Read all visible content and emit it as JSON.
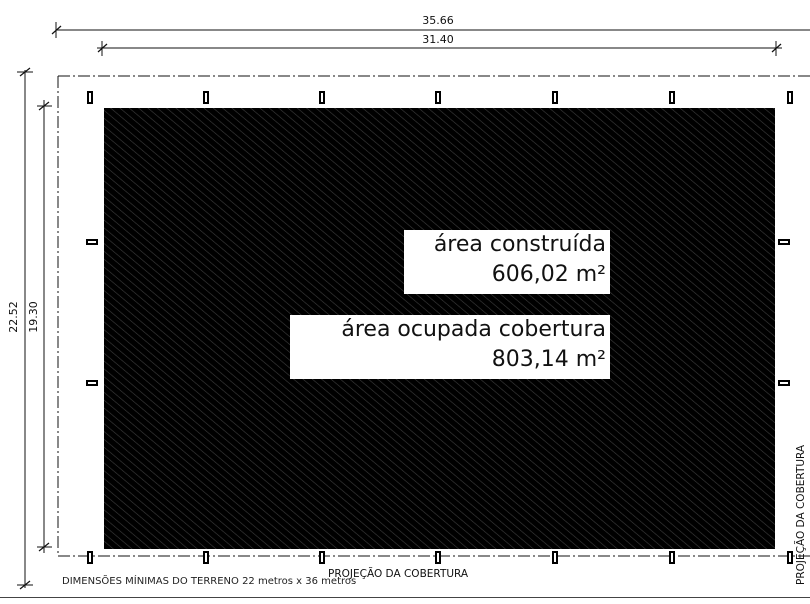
{
  "dimensions": {
    "outer_width": "35.66",
    "inner_width": "31.40",
    "outer_height": "22.52",
    "inner_height": "19.30"
  },
  "labels": {
    "built_area_title": "área construída",
    "built_area_value": "606,02 m²",
    "covered_area_title": "área ocupada cobertura",
    "covered_area_value": "803,14 m²",
    "roof_projection_bottom": "PROJEÇÃO DA COBERTURA",
    "roof_projection_side": "PROJEÇÃO DA COBERTURA"
  },
  "footer": {
    "min_dimensions": "DIMENSÕES MÍNIMAS DO TERRENO 22 metros x 36 metros"
  },
  "colors": {
    "hatch_fill": "#000000",
    "hatch_line": "#3a3a3a",
    "line": "#111111",
    "background": "#ffffff"
  }
}
